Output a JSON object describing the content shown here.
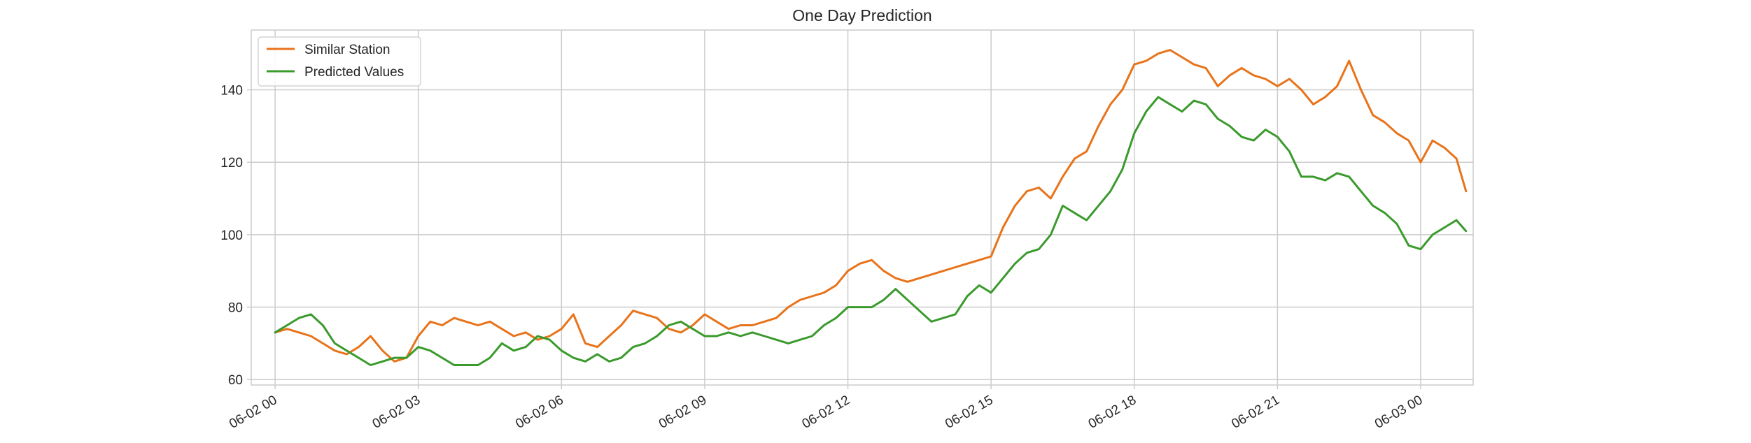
{
  "chart_data": {
    "type": "line",
    "title": "One Day Prediction",
    "xlabel": "",
    "ylabel": "",
    "x_start": "2024-06-02 00:00",
    "x_end": "2024-06-03 00:00",
    "x_ticks": [
      "06-02 00",
      "06-02 03",
      "06-02 06",
      "06-02 09",
      "06-02 12",
      "06-02 15",
      "06-02 18",
      "06-02 21",
      "06-03 00"
    ],
    "y_ticks": [
      60,
      80,
      100,
      120,
      140
    ],
    "xlim_hours": [
      -0.5,
      25.1
    ],
    "ylim": [
      58.5,
      156.5
    ],
    "grid": true,
    "legend_position": "top-left",
    "series": [
      {
        "name": "Similar Station",
        "color": "#e8731a",
        "points": [
          [
            0.0,
            73
          ],
          [
            0.25,
            74
          ],
          [
            0.5,
            73
          ],
          [
            0.75,
            72
          ],
          [
            1.0,
            70
          ],
          [
            1.25,
            68
          ],
          [
            1.5,
            67
          ],
          [
            1.75,
            69
          ],
          [
            2.0,
            72
          ],
          [
            2.25,
            68
          ],
          [
            2.5,
            65
          ],
          [
            2.75,
            66
          ],
          [
            3.0,
            72
          ],
          [
            3.25,
            76
          ],
          [
            3.5,
            75
          ],
          [
            3.75,
            77
          ],
          [
            4.0,
            76
          ],
          [
            4.25,
            75
          ],
          [
            4.5,
            76
          ],
          [
            4.75,
            74
          ],
          [
            5.0,
            72
          ],
          [
            5.25,
            73
          ],
          [
            5.5,
            71
          ],
          [
            5.75,
            72
          ],
          [
            6.0,
            74
          ],
          [
            6.25,
            78
          ],
          [
            6.5,
            70
          ],
          [
            6.75,
            69
          ],
          [
            7.0,
            72
          ],
          [
            7.25,
            75
          ],
          [
            7.5,
            79
          ],
          [
            7.75,
            78
          ],
          [
            8.0,
            77
          ],
          [
            8.25,
            74
          ],
          [
            8.5,
            73
          ],
          [
            8.75,
            75
          ],
          [
            9.0,
            78
          ],
          [
            9.25,
            76
          ],
          [
            9.5,
            74
          ],
          [
            9.75,
            75
          ],
          [
            10.0,
            75
          ],
          [
            10.25,
            76
          ],
          [
            10.5,
            77
          ],
          [
            10.75,
            80
          ],
          [
            11.0,
            82
          ],
          [
            11.25,
            83
          ],
          [
            11.5,
            84
          ],
          [
            11.75,
            86
          ],
          [
            12.0,
            90
          ],
          [
            12.25,
            92
          ],
          [
            12.5,
            93
          ],
          [
            12.75,
            90
          ],
          [
            13.0,
            88
          ],
          [
            13.25,
            87
          ],
          [
            13.5,
            88
          ],
          [
            13.75,
            89
          ],
          [
            14.0,
            90
          ],
          [
            14.25,
            91
          ],
          [
            14.5,
            92
          ],
          [
            14.75,
            93
          ],
          [
            15.0,
            94
          ],
          [
            15.25,
            102
          ],
          [
            15.5,
            108
          ],
          [
            15.75,
            112
          ],
          [
            16.0,
            113
          ],
          [
            16.25,
            110
          ],
          [
            16.5,
            116
          ],
          [
            16.75,
            121
          ],
          [
            17.0,
            123
          ],
          [
            17.25,
            130
          ],
          [
            17.5,
            136
          ],
          [
            17.75,
            140
          ],
          [
            18.0,
            147
          ],
          [
            18.25,
            148
          ],
          [
            18.5,
            150
          ],
          [
            18.75,
            151
          ],
          [
            19.0,
            149
          ],
          [
            19.25,
            147
          ],
          [
            19.5,
            146
          ],
          [
            19.75,
            141
          ],
          [
            20.0,
            144
          ],
          [
            20.25,
            146
          ],
          [
            20.5,
            144
          ],
          [
            20.75,
            143
          ],
          [
            21.0,
            141
          ],
          [
            21.25,
            143
          ],
          [
            21.5,
            140
          ],
          [
            21.75,
            136
          ],
          [
            22.0,
            138
          ],
          [
            22.25,
            141
          ],
          [
            22.5,
            148
          ],
          [
            22.75,
            140
          ],
          [
            23.0,
            133
          ],
          [
            23.25,
            131
          ],
          [
            23.5,
            128
          ],
          [
            23.75,
            126
          ],
          [
            24.0,
            120
          ],
          [
            24.25,
            126
          ],
          [
            24.5,
            124
          ],
          [
            24.75,
            121
          ],
          [
            24.95,
            112
          ]
        ]
      },
      {
        "name": "Predicted Values",
        "color": "#3a9a2c",
        "points": [
          [
            0.0,
            73
          ],
          [
            0.25,
            75
          ],
          [
            0.5,
            77
          ],
          [
            0.75,
            78
          ],
          [
            1.0,
            75
          ],
          [
            1.25,
            70
          ],
          [
            1.5,
            68
          ],
          [
            1.75,
            66
          ],
          [
            2.0,
            64
          ],
          [
            2.25,
            65
          ],
          [
            2.5,
            66
          ],
          [
            2.75,
            66
          ],
          [
            3.0,
            69
          ],
          [
            3.25,
            68
          ],
          [
            3.5,
            66
          ],
          [
            3.75,
            64
          ],
          [
            4.0,
            64
          ],
          [
            4.25,
            64
          ],
          [
            4.5,
            66
          ],
          [
            4.75,
            70
          ],
          [
            5.0,
            68
          ],
          [
            5.25,
            69
          ],
          [
            5.5,
            72
          ],
          [
            5.75,
            71
          ],
          [
            6.0,
            68
          ],
          [
            6.25,
            66
          ],
          [
            6.5,
            65
          ],
          [
            6.75,
            67
          ],
          [
            7.0,
            65
          ],
          [
            7.25,
            66
          ],
          [
            7.5,
            69
          ],
          [
            7.75,
            70
          ],
          [
            8.0,
            72
          ],
          [
            8.25,
            75
          ],
          [
            8.5,
            76
          ],
          [
            8.75,
            74
          ],
          [
            9.0,
            72
          ],
          [
            9.25,
            72
          ],
          [
            9.5,
            73
          ],
          [
            9.75,
            72
          ],
          [
            10.0,
            73
          ],
          [
            10.25,
            72
          ],
          [
            10.5,
            71
          ],
          [
            10.75,
            70
          ],
          [
            11.0,
            71
          ],
          [
            11.25,
            72
          ],
          [
            11.5,
            75
          ],
          [
            11.75,
            77
          ],
          [
            12.0,
            80
          ],
          [
            12.25,
            80
          ],
          [
            12.5,
            80
          ],
          [
            12.75,
            82
          ],
          [
            13.0,
            85
          ],
          [
            13.25,
            82
          ],
          [
            13.5,
            79
          ],
          [
            13.75,
            76
          ],
          [
            14.0,
            77
          ],
          [
            14.25,
            78
          ],
          [
            14.5,
            83
          ],
          [
            14.75,
            86
          ],
          [
            15.0,
            84
          ],
          [
            15.25,
            88
          ],
          [
            15.5,
            92
          ],
          [
            15.75,
            95
          ],
          [
            16.0,
            96
          ],
          [
            16.25,
            100
          ],
          [
            16.5,
            108
          ],
          [
            16.75,
            106
          ],
          [
            17.0,
            104
          ],
          [
            17.25,
            108
          ],
          [
            17.5,
            112
          ],
          [
            17.75,
            118
          ],
          [
            18.0,
            128
          ],
          [
            18.25,
            134
          ],
          [
            18.5,
            138
          ],
          [
            18.75,
            136
          ],
          [
            19.0,
            134
          ],
          [
            19.25,
            137
          ],
          [
            19.5,
            136
          ],
          [
            19.75,
            132
          ],
          [
            20.0,
            130
          ],
          [
            20.25,
            127
          ],
          [
            20.5,
            126
          ],
          [
            20.75,
            129
          ],
          [
            21.0,
            127
          ],
          [
            21.25,
            123
          ],
          [
            21.5,
            116
          ],
          [
            21.75,
            116
          ],
          [
            22.0,
            115
          ],
          [
            22.25,
            117
          ],
          [
            22.5,
            116
          ],
          [
            22.75,
            112
          ],
          [
            23.0,
            108
          ],
          [
            23.25,
            106
          ],
          [
            23.5,
            103
          ],
          [
            23.75,
            97
          ],
          [
            24.0,
            96
          ],
          [
            24.25,
            100
          ],
          [
            24.5,
            102
          ],
          [
            24.75,
            104
          ],
          [
            24.95,
            101
          ]
        ]
      }
    ]
  }
}
